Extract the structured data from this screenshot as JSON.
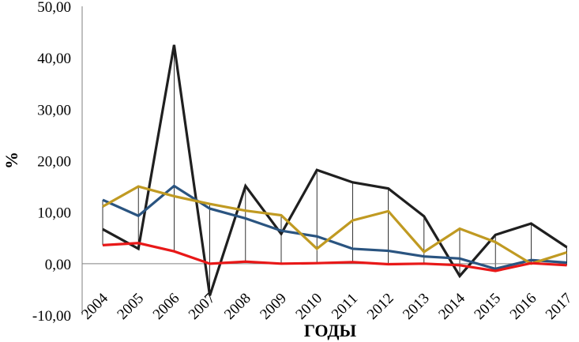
{
  "chart_data": {
    "type": "line",
    "xlabel": "ГОДЫ",
    "ylabel": "%",
    "ylim": [
      -10,
      50
    ],
    "yticks": [
      "-10,00",
      "0,00",
      "10,00",
      "20,00",
      "30,00",
      "40,00",
      "50,00"
    ],
    "x": [
      "2004",
      "2005",
      "2006",
      "2007",
      "2008",
      "2009",
      "2010",
      "2011",
      "2012",
      "2013",
      "2014",
      "2015",
      "2016",
      "2017"
    ],
    "grid": "vertical drop lines at each year",
    "legend": "none",
    "series": [
      {
        "color": "#1f1f1f",
        "values": [
          6.7,
          2.9,
          42.5,
          -6.2,
          15.1,
          5.8,
          18.2,
          15.8,
          14.6,
          9.2,
          -2.4,
          5.6,
          7.8,
          3.2
        ]
      },
      {
        "color": "#2a5480",
        "values": [
          12.4,
          9.3,
          15.1,
          10.7,
          8.8,
          6.4,
          5.3,
          2.9,
          2.5,
          1.4,
          1.0,
          -1.0,
          0.7,
          0.2
        ]
      },
      {
        "color": "#c09a22",
        "values": [
          11.1,
          15.0,
          13.1,
          11.6,
          10.3,
          9.4,
          2.9,
          8.4,
          10.2,
          2.3,
          6.8,
          4.2,
          0.0,
          2.2
        ]
      },
      {
        "color": "#e81818",
        "values": [
          3.6,
          4.0,
          2.4,
          0.0,
          0.4,
          0.0,
          0.1,
          0.3,
          -0.1,
          0.0,
          -0.3,
          -1.4,
          0.1,
          -0.3
        ]
      }
    ]
  }
}
